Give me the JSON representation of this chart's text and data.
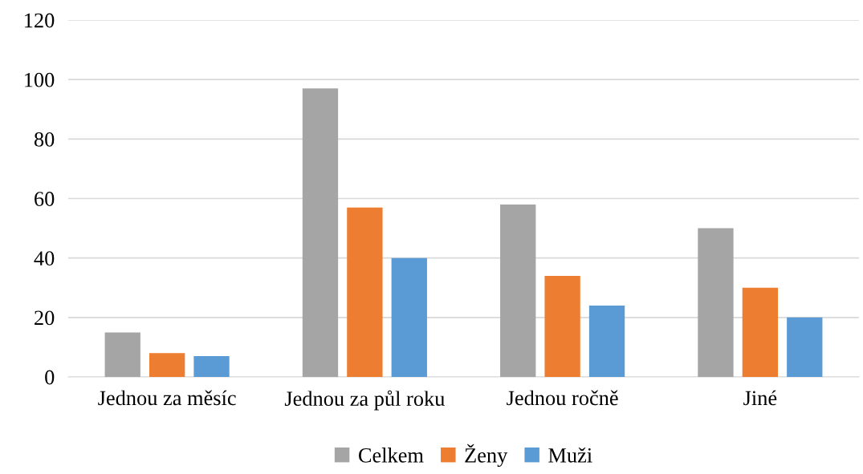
{
  "chart_data": {
    "type": "bar",
    "categories": [
      "Jednou za měsíc",
      "Jednou za půl roku",
      "Jednou ročně",
      "Jiné"
    ],
    "series": [
      {
        "name": "Celkem",
        "color": "#a5a5a5",
        "values": [
          15,
          97,
          58,
          50
        ]
      },
      {
        "name": "Ženy",
        "color": "#ed7d31",
        "values": [
          8,
          57,
          34,
          30
        ]
      },
      {
        "name": "Muži",
        "color": "#5b9bd5",
        "values": [
          7,
          40,
          24,
          20
        ]
      }
    ],
    "ylim": [
      0,
      120
    ],
    "yticks": [
      0,
      20,
      40,
      60,
      80,
      100,
      120
    ],
    "grid": "y",
    "legend": "bottom"
  }
}
